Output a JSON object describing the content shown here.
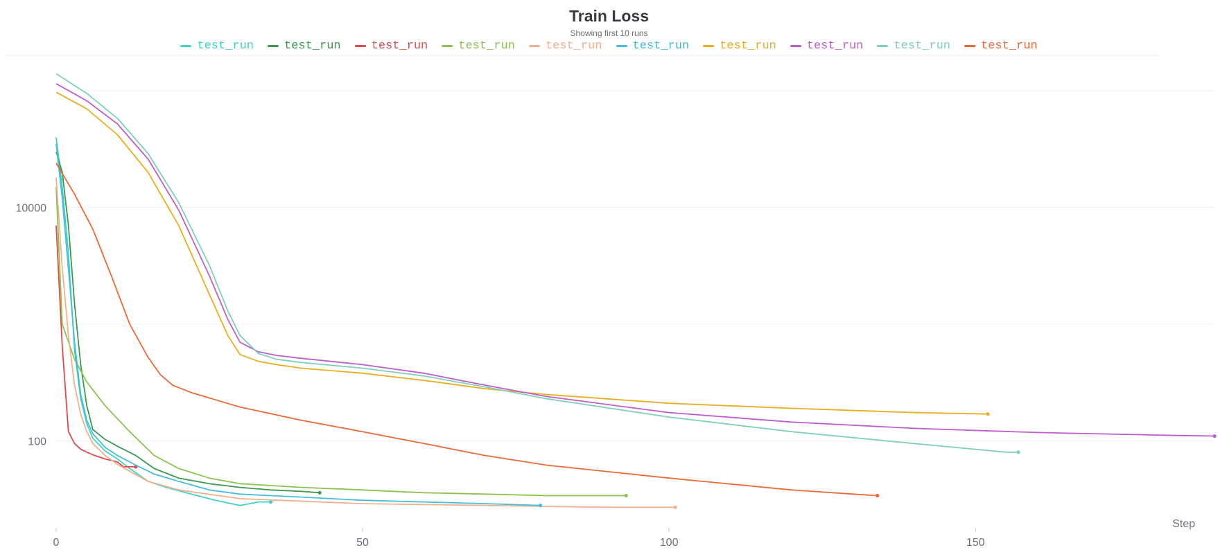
{
  "chart_data": {
    "type": "line",
    "title": "Train Loss",
    "subtitle": "Showing first 10 runs",
    "xlabel": "Step",
    "ylabel": "",
    "yscale": "log",
    "xlim": [
      0,
      189
    ],
    "ylim": [
      18,
      185000
    ],
    "xticks": [
      0,
      50,
      100,
      150
    ],
    "yticks": [
      100,
      10000
    ],
    "grid": true,
    "legend_position": "top-center",
    "series": [
      {
        "name": "test_run",
        "color": "#3dd2c2",
        "x": [
          0,
          1,
          2,
          3,
          4,
          5,
          6,
          8,
          10,
          12,
          15,
          18,
          22,
          26,
          30,
          33,
          35
        ],
        "y": [
          40000,
          15000,
          4000,
          600,
          230,
          140,
          105,
          82,
          70,
          58,
          45,
          40,
          35,
          31,
          28,
          30,
          30
        ]
      },
      {
        "name": "test_run",
        "color": "#3a9a50",
        "x": [
          0,
          1,
          2,
          3,
          4,
          5,
          6,
          8,
          10,
          13,
          16,
          20,
          25,
          30,
          35,
          40,
          43
        ],
        "y": [
          30000,
          20000,
          7000,
          1500,
          450,
          200,
          125,
          103,
          90,
          75,
          58,
          48,
          43,
          40,
          38,
          37,
          36
        ]
      },
      {
        "name": "test_run",
        "color": "#df4a4a",
        "x": [
          0,
          1,
          2,
          3,
          4,
          5,
          6,
          8,
          10,
          11,
          13
        ],
        "y": [
          7000,
          650,
          120,
          95,
          85,
          80,
          76,
          70,
          66,
          60,
          60
        ]
      },
      {
        "name": "test_run",
        "color": "#8dc24f",
        "x": [
          0,
          1,
          3,
          5,
          8,
          12,
          16,
          20,
          25,
          30,
          40,
          50,
          60,
          70,
          80,
          90,
          93
        ],
        "y": [
          15000,
          1000,
          500,
          320,
          200,
          120,
          75,
          58,
          48,
          43,
          40,
          38,
          36,
          35,
          34,
          34,
          34
        ]
      },
      {
        "name": "test_run",
        "color": "#f2b08c",
        "x": [
          0,
          1,
          2,
          3,
          4,
          5,
          6,
          8,
          10,
          12,
          15,
          20,
          30,
          50,
          70,
          90,
          101
        ],
        "y": [
          18000,
          3000,
          800,
          300,
          170,
          120,
          95,
          75,
          63,
          55,
          45,
          38,
          32,
          29,
          28,
          27,
          27
        ]
      },
      {
        "name": "test_run",
        "color": "#45bddd",
        "x": [
          0,
          1,
          2,
          3,
          4,
          5,
          6,
          8,
          10,
          13,
          16,
          20,
          25,
          30,
          40,
          50,
          60,
          70,
          79
        ],
        "y": [
          35000,
          12000,
          3000,
          700,
          250,
          150,
          115,
          88,
          75,
          62,
          52,
          45,
          38,
          35,
          33,
          31,
          30,
          29,
          28
        ]
      },
      {
        "name": "test_run",
        "color": "#ebad1e",
        "x": [
          0,
          5,
          10,
          15,
          20,
          25,
          28,
          30,
          33,
          36,
          40,
          50,
          60,
          70,
          80,
          100,
          120,
          140,
          152
        ],
        "y": [
          97000,
          70000,
          42000,
          20000,
          7000,
          1800,
          800,
          550,
          480,
          450,
          420,
          380,
          330,
          280,
          250,
          210,
          190,
          175,
          170
        ]
      },
      {
        "name": "test_run",
        "color": "#bf5dce",
        "x": [
          0,
          5,
          10,
          15,
          20,
          25,
          28,
          30,
          33,
          36,
          40,
          50,
          60,
          70,
          80,
          100,
          120,
          140,
          160,
          180,
          189
        ],
        "y": [
          115000,
          82000,
          52000,
          26000,
          9500,
          2600,
          1100,
          700,
          580,
          540,
          510,
          450,
          380,
          300,
          240,
          175,
          145,
          128,
          118,
          112,
          110
        ]
      },
      {
        "name": "test_run",
        "color": "#7fcfbd",
        "x": [
          0,
          5,
          10,
          15,
          20,
          25,
          28,
          30,
          33,
          36,
          40,
          50,
          60,
          70,
          80,
          100,
          120,
          140,
          155,
          157
        ],
        "y": [
          140000,
          95000,
          58000,
          29000,
          11000,
          3200,
          1300,
          800,
          560,
          500,
          470,
          420,
          360,
          290,
          230,
          160,
          120,
          95,
          80,
          80
        ]
      },
      {
        "name": "test_run",
        "color": "#ec6937",
        "x": [
          0,
          3,
          6,
          9,
          12,
          15,
          17,
          19,
          22,
          26,
          30,
          40,
          50,
          60,
          70,
          80,
          100,
          120,
          130,
          134
        ],
        "y": [
          24000,
          13000,
          6500,
          2600,
          1000,
          520,
          370,
          300,
          260,
          225,
          195,
          150,
          120,
          95,
          75,
          62,
          48,
          38,
          35,
          34
        ]
      }
    ]
  }
}
